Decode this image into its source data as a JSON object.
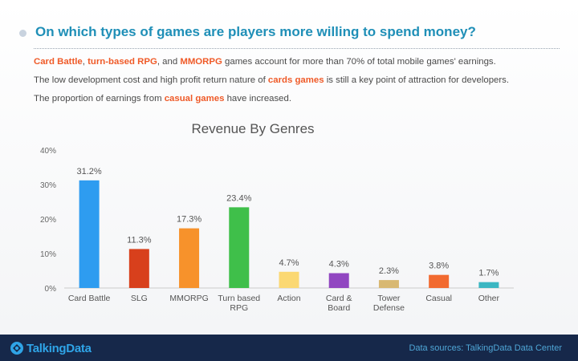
{
  "header": {
    "title": "On which types of games are players more willing to spend money?"
  },
  "summary": {
    "line1": {
      "hl1": "Card Battle",
      "t1": ", ",
      "hl2": "turn-based RPG",
      "t2": ", and ",
      "hl3": "MMORPG",
      "t3": " games account for more than 70% of total mobile games' earnings."
    },
    "line2": {
      "t1": "The low development cost and high profit return nature of ",
      "hl1": "cards games",
      "t2": " is still a key point of attraction for developers."
    },
    "line3": {
      "t1": "The proportion of earnings from ",
      "hl1": "casual games",
      "t2": " have increased."
    }
  },
  "chart_data": {
    "type": "bar",
    "title": "Revenue By Genres",
    "xlabel": "",
    "ylabel": "",
    "ylim": [
      0,
      40
    ],
    "yticks": [
      0,
      10,
      20,
      30,
      40
    ],
    "ytick_labels": [
      "0%",
      "10%",
      "20%",
      "30%",
      "40%"
    ],
    "grid": false,
    "categories": [
      [
        "Card Battle"
      ],
      [
        "SLG"
      ],
      [
        "MMORPG"
      ],
      [
        "Turn based",
        "RPG"
      ],
      [
        "Action"
      ],
      [
        "Card &",
        "Board"
      ],
      [
        "Tower",
        "Defense"
      ],
      [
        "Casual"
      ],
      [
        "Other"
      ]
    ],
    "values": [
      31.2,
      11.3,
      17.3,
      23.4,
      4.7,
      4.3,
      2.3,
      3.8,
      1.7
    ],
    "value_labels": [
      "31.2%",
      "11.3%",
      "17.3%",
      "23.4%",
      "4.7%",
      "4.3%",
      "2.3%",
      "3.8%",
      "1.7%"
    ],
    "colors": [
      "#2e9cf0",
      "#d8401c",
      "#f7922b",
      "#3fbf4a",
      "#fbd872",
      "#9146c1",
      "#d8b872",
      "#f26a30",
      "#3bb6c2"
    ]
  },
  "footer": {
    "logo_text": "TalkingData",
    "source": "Data sources: TalkingData Data Center"
  },
  "colors": {
    "title": "#1f8fb7",
    "highlight": "#ef5a28",
    "footer_bg": "#16284a",
    "footer_text": "#4fa6d6"
  }
}
